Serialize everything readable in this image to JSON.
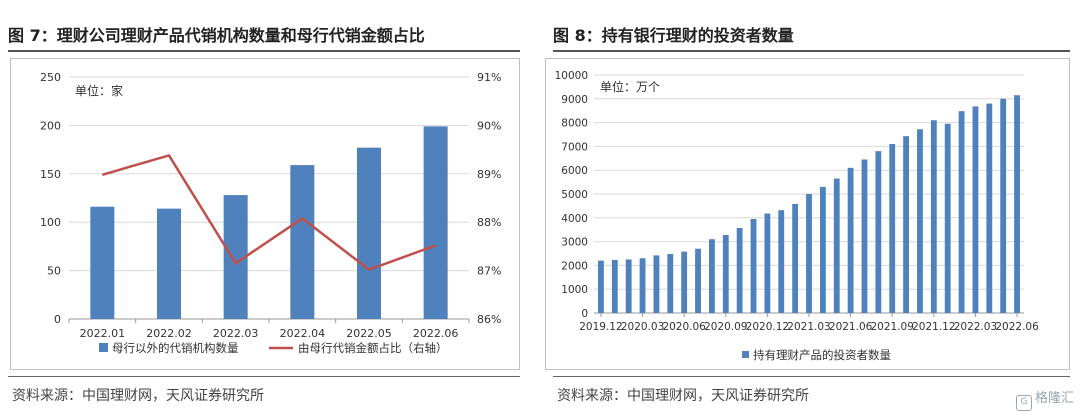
{
  "left_panel": {
    "title": "图 7：理财公司理财产品代销机构数量和母行代销金额占比",
    "source": "资料来源：中国理财网，天风证券研究所"
  },
  "right_panel": {
    "title": "图 8：持有银行理财的投资者数量",
    "source": "资料来源：中国理财网，天风证券研究所"
  },
  "watermark": {
    "text": "格隆汇",
    "icon": "gelonghui-logo-icon"
  },
  "chart_data": [
    {
      "type": "bar",
      "unit_note": "单位：家",
      "categories": [
        "2022.01",
        "2022.02",
        "2022.03",
        "2022.04",
        "2022.05",
        "2022.06"
      ],
      "series": [
        {
          "name": "母行以外的代销机构数量",
          "type": "bar",
          "axis": "left",
          "color": "#4f81bd",
          "values": [
            116,
            114,
            128,
            159,
            177,
            199
          ]
        },
        {
          "name": "由母行代销金额占比（右轴）",
          "type": "line",
          "axis": "right",
          "color": "#c0504d",
          "values": [
            88.98,
            89.38,
            87.15,
            88.08,
            87.02,
            87.52
          ]
        }
      ],
      "y_left": {
        "min": 0,
        "max": 250,
        "ticks": [
          "0",
          "50",
          "100",
          "150",
          "200",
          "250"
        ]
      },
      "y_right": {
        "min": 86,
        "max": 91,
        "ticks": [
          "86%",
          "87%",
          "88%",
          "89%",
          "90%",
          "91%"
        ]
      },
      "grid": true,
      "legend_position": "bottom"
    },
    {
      "type": "bar",
      "unit_note": "单位：万个",
      "x_tick_labels": [
        "2019.12",
        "2020.03",
        "2020.06",
        "2020.09",
        "2020.12",
        "2021.03",
        "2021.06",
        "2021.09",
        "2021.12",
        "2022.03",
        "2022.06"
      ],
      "categories": [
        "2019.12",
        "2020.01",
        "2020.02",
        "2020.03",
        "2020.04",
        "2020.05",
        "2020.06",
        "2020.07",
        "2020.08",
        "2020.09",
        "2020.10",
        "2020.11",
        "2020.12",
        "2021.01",
        "2021.02",
        "2021.03",
        "2021.04",
        "2021.05",
        "2021.06",
        "2021.07",
        "2021.08",
        "2021.09",
        "2021.10",
        "2021.11",
        "2021.12",
        "2022.01",
        "2022.02",
        "2022.03",
        "2022.04",
        "2022.05",
        "2022.06"
      ],
      "series": [
        {
          "name": "持有理财产品的投资者数量",
          "color": "#4f81bd",
          "values": [
            2200,
            2230,
            2250,
            2300,
            2420,
            2480,
            2580,
            2700,
            3100,
            3280,
            3570,
            3950,
            4180,
            4320,
            4580,
            5000,
            5300,
            5650,
            6100,
            6450,
            6800,
            7100,
            7430,
            7720,
            8100,
            7950,
            8480,
            8680,
            8800,
            9000,
            9150
          ]
        }
      ],
      "y": {
        "min": 0,
        "max": 10000,
        "ticks": [
          "0",
          "1000",
          "2000",
          "3000",
          "4000",
          "5000",
          "6000",
          "7000",
          "8000",
          "9000",
          "10000"
        ]
      },
      "grid": true,
      "legend_position": "bottom"
    }
  ]
}
